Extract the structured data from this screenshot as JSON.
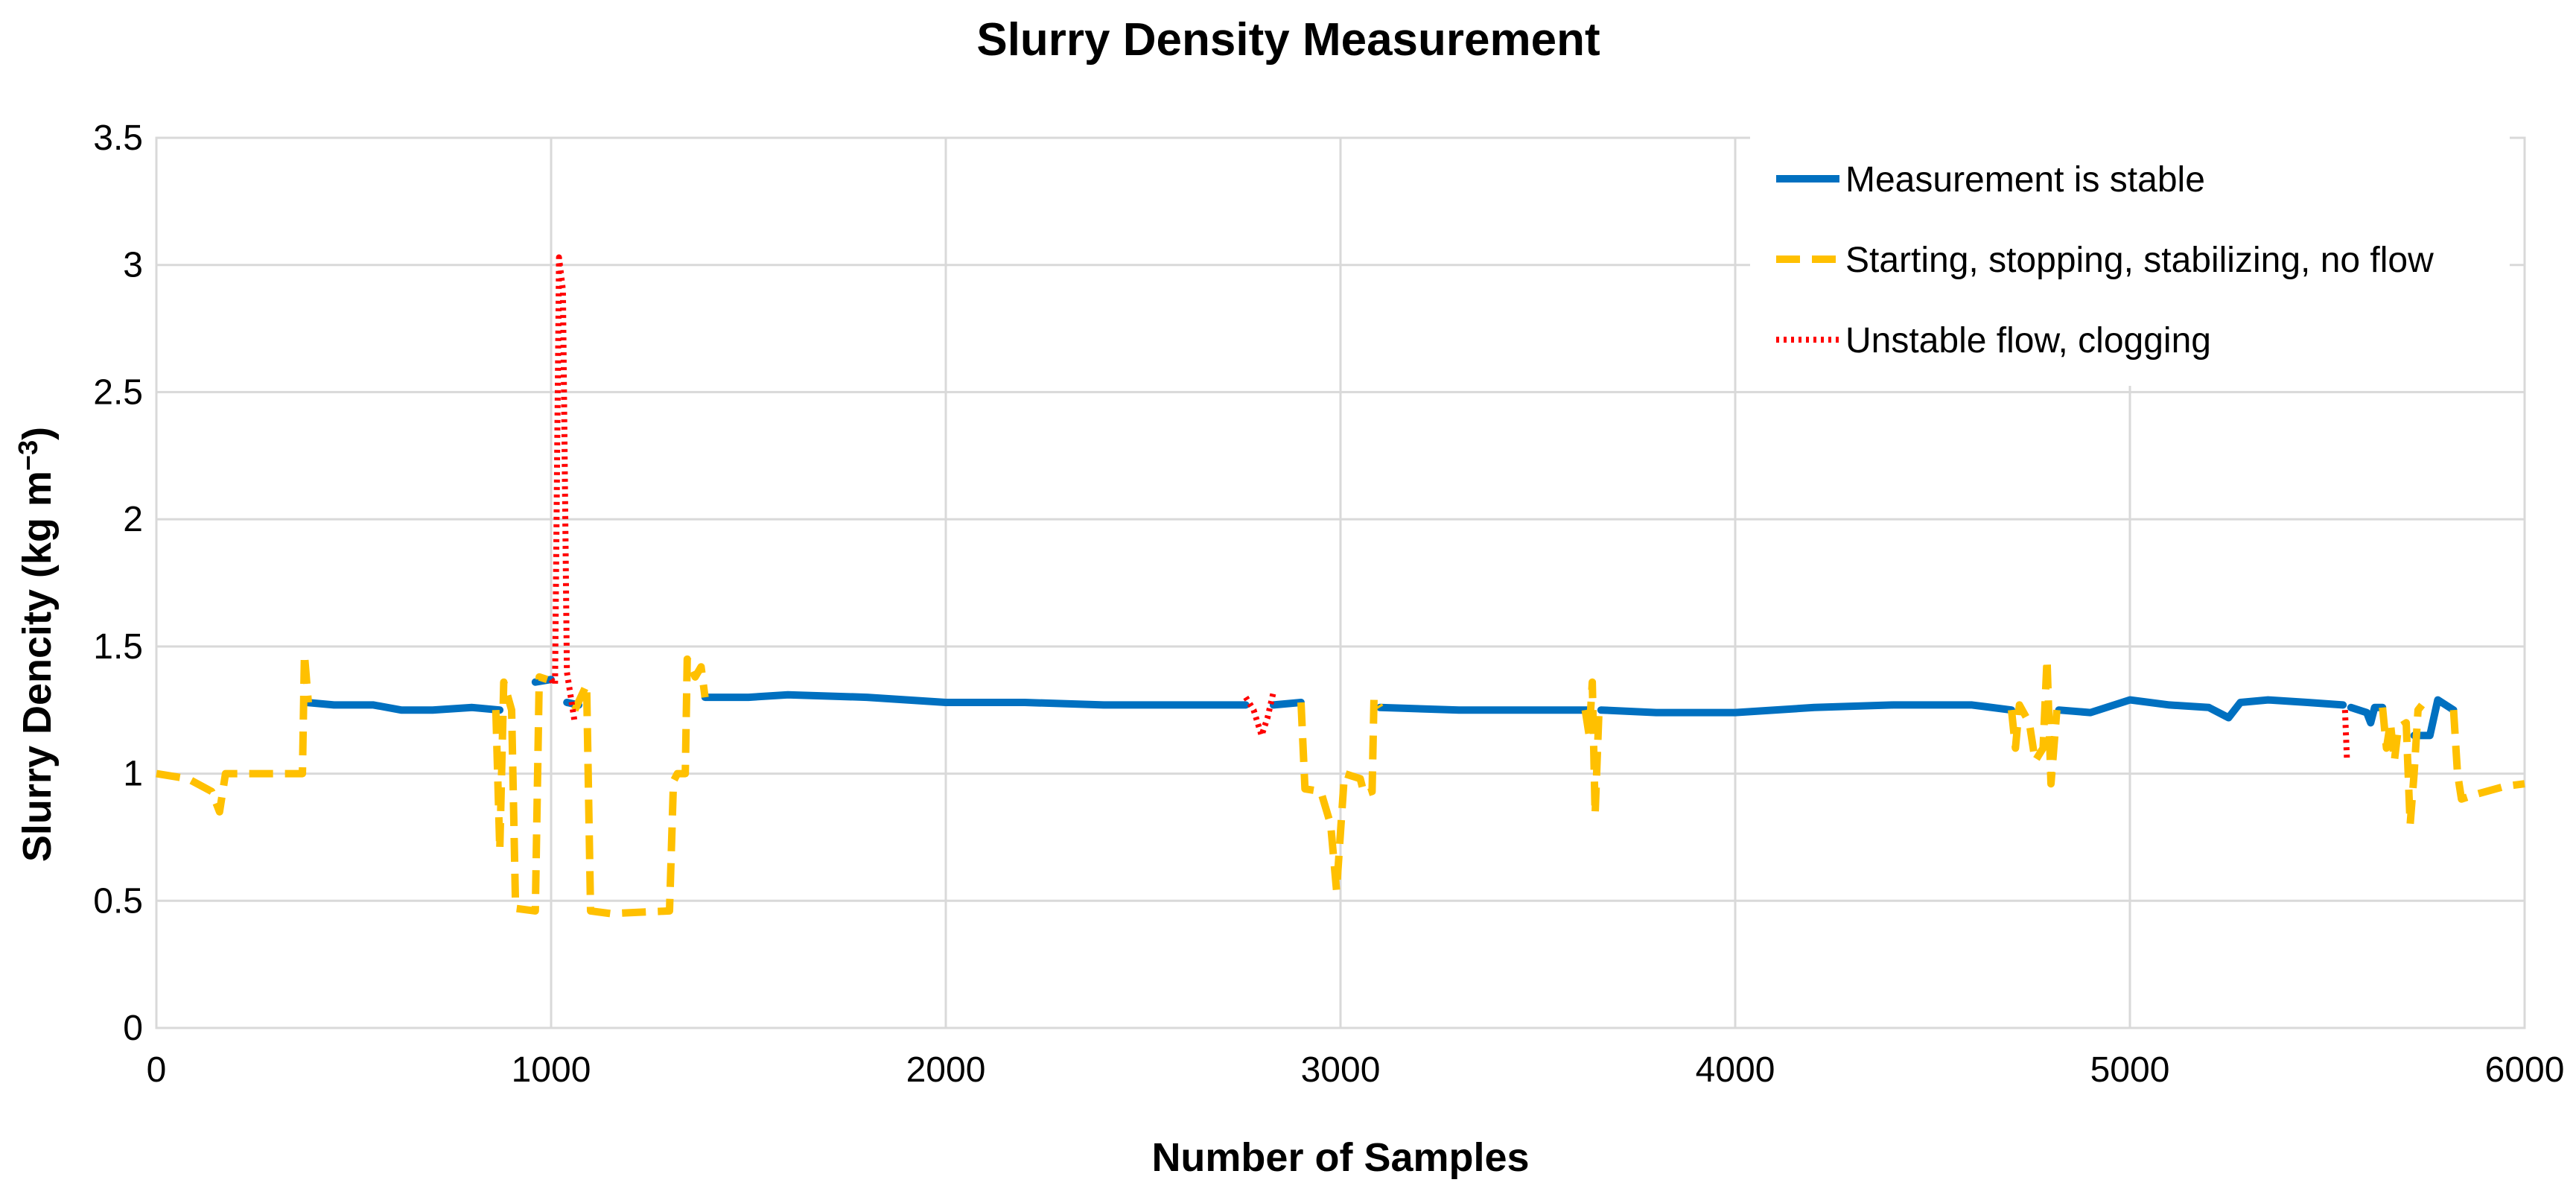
{
  "chart_data": {
    "type": "line",
    "title": "Slurry Density Measurement",
    "xlabel": "Number of Samples",
    "ylabel": "Slurry Dencity (kg m",
    "ylabel_sup": "−3",
    "ylabel_close": ")",
    "xlim": [
      0,
      6000
    ],
    "ylim": [
      0,
      3.5
    ],
    "xticks": [
      0,
      1000,
      2000,
      3000,
      4000,
      5000,
      6000
    ],
    "yticks": [
      0,
      0.5,
      1,
      1.5,
      2,
      2.5,
      3,
      3.5
    ],
    "xtick_labels": [
      "0",
      "1000",
      "2000",
      "3000",
      "4000",
      "5000",
      "6000"
    ],
    "ytick_labels": [
      "0",
      "0.5",
      "1",
      "1.5",
      "2",
      "2.5",
      "3",
      "3.5"
    ],
    "grid": true,
    "legend_position": "top-right",
    "colors": {
      "stable": "#0070C0",
      "starting": "#FFC000",
      "unstable": "#FF0000",
      "grid": "#d9d9d9"
    },
    "series": [
      {
        "name": "Measurement is stable",
        "style": "solid",
        "segments": [
          [
            [
              380,
              1.28
            ],
            [
              450,
              1.27
            ],
            [
              550,
              1.27
            ],
            [
              620,
              1.25
            ],
            [
              700,
              1.25
            ],
            [
              800,
              1.26
            ],
            [
              870,
              1.25
            ]
          ],
          [
            [
              960,
              1.36
            ],
            [
              1000,
              1.37
            ]
          ],
          [
            [
              1040,
              1.28
            ],
            [
              1070,
              1.27
            ]
          ],
          [
            [
              1390,
              1.3
            ],
            [
              1500,
              1.3
            ],
            [
              1600,
              1.31
            ],
            [
              1800,
              1.3
            ],
            [
              2000,
              1.28
            ],
            [
              2200,
              1.28
            ],
            [
              2400,
              1.27
            ],
            [
              2600,
              1.27
            ],
            [
              2760,
              1.27
            ]
          ],
          [
            [
              2830,
              1.27
            ],
            [
              2900,
              1.28
            ]
          ],
          [
            [
              3100,
              1.26
            ],
            [
              3300,
              1.25
            ],
            [
              3500,
              1.25
            ],
            [
              3630,
              1.25
            ]
          ],
          [
            [
              3660,
              1.25
            ],
            [
              3800,
              1.24
            ],
            [
              4000,
              1.24
            ],
            [
              4200,
              1.26
            ],
            [
              4400,
              1.27
            ],
            [
              4600,
              1.27
            ],
            [
              4700,
              1.25
            ]
          ],
          [
            [
              4820,
              1.25
            ],
            [
              4900,
              1.24
            ],
            [
              5000,
              1.29
            ],
            [
              5100,
              1.27
            ],
            [
              5200,
              1.26
            ],
            [
              5250,
              1.22
            ],
            [
              5280,
              1.28
            ],
            [
              5350,
              1.29
            ],
            [
              5450,
              1.28
            ],
            [
              5540,
              1.27
            ]
          ],
          [
            [
              5560,
              1.26
            ],
            [
              5600,
              1.24
            ],
            [
              5610,
              1.2
            ],
            [
              5620,
              1.26
            ],
            [
              5640,
              1.26
            ]
          ],
          [
            [
              5720,
              1.15
            ],
            [
              5760,
              1.15
            ],
            [
              5780,
              1.29
            ],
            [
              5820,
              1.25
            ]
          ]
        ]
      },
      {
        "name": "Starting, stopping, stabilizing, no flow",
        "style": "dashed",
        "segments": [
          [
            [
              0,
              1.0
            ],
            [
              80,
              0.98
            ],
            [
              140,
              0.93
            ],
            [
              160,
              0.85
            ],
            [
              175,
              1.0
            ],
            [
              250,
              1.0
            ],
            [
              370,
              1.0
            ],
            [
              375,
              1.47
            ],
            [
              385,
              1.28
            ]
          ],
          [
            [
              860,
              1.25
            ],
            [
              870,
              0.7
            ],
            [
              880,
              1.36
            ],
            [
              900,
              1.25
            ],
            [
              910,
              0.47
            ],
            [
              960,
              0.46
            ],
            [
              970,
              1.38
            ],
            [
              990,
              1.37
            ]
          ],
          [
            [
              1060,
              1.25
            ],
            [
              1090,
              1.35
            ],
            [
              1100,
              0.46
            ],
            [
              1150,
              0.45
            ],
            [
              1300,
              0.46
            ],
            [
              1310,
              0.97
            ],
            [
              1320,
              1.0
            ],
            [
              1340,
              1.0
            ],
            [
              1345,
              1.45
            ],
            [
              1365,
              1.38
            ],
            [
              1380,
              1.42
            ],
            [
              1390,
              1.3
            ]
          ],
          [
            [
              2900,
              1.28
            ],
            [
              2910,
              0.94
            ],
            [
              2950,
              0.93
            ],
            [
              2975,
              0.8
            ],
            [
              2990,
              0.54
            ],
            [
              3010,
              1.0
            ],
            [
              3050,
              0.98
            ],
            [
              3060,
              0.92
            ],
            [
              3080,
              0.93
            ],
            [
              3085,
              1.3
            ],
            [
              3100,
              1.26
            ]
          ],
          [
            [
              3620,
              1.25
            ],
            [
              3630,
              1.15
            ],
            [
              3638,
              1.36
            ],
            [
              3645,
              0.84
            ],
            [
              3655,
              1.25
            ]
          ],
          [
            [
              4700,
              1.25
            ],
            [
              4710,
              1.1
            ],
            [
              4720,
              1.27
            ],
            [
              4745,
              1.2
            ],
            [
              4760,
              1.05
            ],
            [
              4780,
              1.1
            ],
            [
              4790,
              1.45
            ],
            [
              4800,
              0.96
            ],
            [
              4815,
              1.25
            ]
          ],
          [
            [
              5640,
              1.26
            ],
            [
              5650,
              1.1
            ],
            [
              5660,
              1.2
            ],
            [
              5670,
              1.05
            ],
            [
              5680,
              1.18
            ],
            [
              5700,
              1.2
            ],
            [
              5710,
              0.8
            ],
            [
              5720,
              1.0
            ],
            [
              5730,
              1.25
            ],
            [
              5740,
              1.27
            ]
          ],
          [
            [
              5820,
              1.25
            ],
            [
              5830,
              1.0
            ],
            [
              5840,
              0.9
            ],
            [
              5880,
              0.92
            ],
            [
              5950,
              0.95
            ],
            [
              6000,
              0.96
            ]
          ]
        ]
      },
      {
        "name": "Unstable flow, clogging",
        "style": "dotted",
        "segments": [
          [
            [
              1000,
              1.37
            ],
            [
              1010,
              1.35
            ],
            [
              1020,
              3.03
            ],
            [
              1030,
              2.9
            ],
            [
              1040,
              1.4
            ],
            [
              1050,
              1.3
            ],
            [
              1060,
              1.2
            ]
          ],
          [
            [
              2760,
              1.3
            ],
            [
              2780,
              1.25
            ],
            [
              2800,
              1.15
            ],
            [
              2815,
              1.22
            ],
            [
              2830,
              1.32
            ]
          ],
          [
            [
              5545,
              1.25
            ],
            [
              5550,
              1.05
            ]
          ]
        ]
      }
    ]
  }
}
